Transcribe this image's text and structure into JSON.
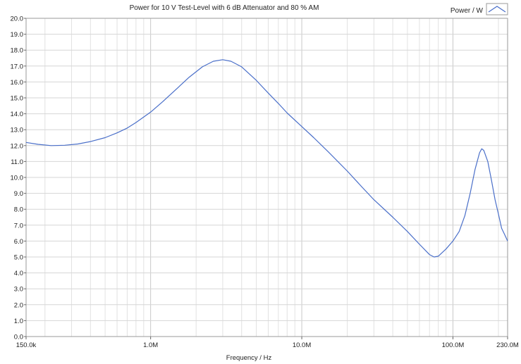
{
  "chart_data": {
    "type": "line",
    "title": "Power for 10 V Test-Level with 6 dB Attenuator and 80 % AM",
    "xlabel": "Frequency / Hz",
    "ylabel": "",
    "x_scale": "log",
    "xlim": [
      150000,
      230000000
    ],
    "ylim": [
      0,
      20
    ],
    "grid": true,
    "legend_position": "top-right",
    "x_tick_labels": [
      {
        "value": 150000,
        "label": "150.0k"
      },
      {
        "value": 1000000,
        "label": "1.0M"
      },
      {
        "value": 10000000,
        "label": "10.0M"
      },
      {
        "value": 100000000,
        "label": "100.0M"
      },
      {
        "value": 230000000,
        "label": "230.0M"
      }
    ],
    "y_tick_labels": [
      {
        "value": 0,
        "label": "0.0"
      },
      {
        "value": 1,
        "label": "1.0"
      },
      {
        "value": 2,
        "label": "2.0"
      },
      {
        "value": 3,
        "label": "3.0"
      },
      {
        "value": 4,
        "label": "4.0"
      },
      {
        "value": 5,
        "label": "5.0"
      },
      {
        "value": 6,
        "label": "6.0"
      },
      {
        "value": 7,
        "label": "7.0"
      },
      {
        "value": 8,
        "label": "8.0"
      },
      {
        "value": 9,
        "label": "9.0"
      },
      {
        "value": 10,
        "label": "10.0"
      },
      {
        "value": 11,
        "label": "11.0"
      },
      {
        "value": 12,
        "label": "12.0"
      },
      {
        "value": 13,
        "label": "13.0"
      },
      {
        "value": 14,
        "label": "14.0"
      },
      {
        "value": 15,
        "label": "15.0"
      },
      {
        "value": 16,
        "label": "16.0"
      },
      {
        "value": 17,
        "label": "17.0"
      },
      {
        "value": 18,
        "label": "18.0"
      },
      {
        "value": 19,
        "label": "19.0"
      },
      {
        "value": 20,
        "label": "20.0"
      }
    ],
    "series": [
      {
        "name": "Power / W",
        "color": "#4a6fc9",
        "points": [
          [
            150000,
            12.2
          ],
          [
            180000,
            12.08
          ],
          [
            220000,
            12.0
          ],
          [
            270000,
            12.02
          ],
          [
            330000,
            12.1
          ],
          [
            400000,
            12.25
          ],
          [
            500000,
            12.5
          ],
          [
            600000,
            12.8
          ],
          [
            700000,
            13.1
          ],
          [
            800000,
            13.45
          ],
          [
            1000000,
            14.1
          ],
          [
            1200000,
            14.75
          ],
          [
            1500000,
            15.6
          ],
          [
            1800000,
            16.3
          ],
          [
            2200000,
            16.95
          ],
          [
            2600000,
            17.3
          ],
          [
            3000000,
            17.4
          ],
          [
            3400000,
            17.3
          ],
          [
            4000000,
            16.95
          ],
          [
            5000000,
            16.1
          ],
          [
            6000000,
            15.3
          ],
          [
            7000000,
            14.65
          ],
          [
            8000000,
            14.05
          ],
          [
            10000000,
            13.2
          ],
          [
            12000000,
            12.5
          ],
          [
            15000000,
            11.6
          ],
          [
            20000000,
            10.4
          ],
          [
            25000000,
            9.4
          ],
          [
            30000000,
            8.6
          ],
          [
            40000000,
            7.5
          ],
          [
            50000000,
            6.6
          ],
          [
            60000000,
            5.8
          ],
          [
            70000000,
            5.15
          ],
          [
            75000000,
            5.0
          ],
          [
            80000000,
            5.05
          ],
          [
            90000000,
            5.5
          ],
          [
            100000000,
            6.0
          ],
          [
            110000000,
            6.6
          ],
          [
            120000000,
            7.6
          ],
          [
            130000000,
            9.0
          ],
          [
            140000000,
            10.5
          ],
          [
            150000000,
            11.55
          ],
          [
            155000000,
            11.8
          ],
          [
            160000000,
            11.7
          ],
          [
            170000000,
            11.0
          ],
          [
            180000000,
            9.8
          ],
          [
            190000000,
            8.6
          ],
          [
            200000000,
            7.7
          ],
          [
            210000000,
            6.8
          ],
          [
            220000000,
            6.4
          ],
          [
            230000000,
            6.0
          ]
        ]
      }
    ]
  }
}
